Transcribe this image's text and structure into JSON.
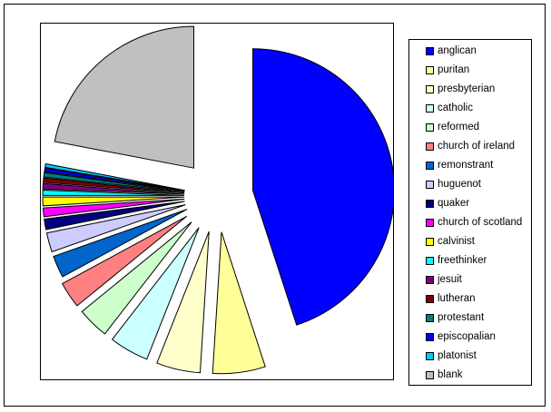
{
  "chart_data": {
    "type": "pie",
    "exploded": true,
    "legend_position": "right",
    "slices": [
      {
        "label": "anglican",
        "value": 45.0,
        "color": "#0000FF"
      },
      {
        "label": "puritan",
        "value": 6.0,
        "color": "#FFFF99"
      },
      {
        "label": "presbyterian",
        "value": 5.0,
        "color": "#FFFFCC"
      },
      {
        "label": "catholic",
        "value": 4.5,
        "color": "#CCFFFF"
      },
      {
        "label": "reformed",
        "value": 3.6,
        "color": "#CCFFCC"
      },
      {
        "label": "church of ireland",
        "value": 3.0,
        "color": "#FF8080"
      },
      {
        "label": "remonstrant",
        "value": 2.5,
        "color": "#0066CC"
      },
      {
        "label": "huguenot",
        "value": 2.2,
        "color": "#CCCCFF"
      },
      {
        "label": "quaker",
        "value": 1.2,
        "color": "#000080"
      },
      {
        "label": "church of scotland",
        "value": 1.0,
        "color": "#FF00FF"
      },
      {
        "label": "calvinist",
        "value": 1.0,
        "color": "#FFFF00"
      },
      {
        "label": "freethinker",
        "value": 0.6,
        "color": "#00FFFF"
      },
      {
        "label": "jesuit",
        "value": 0.6,
        "color": "#800080"
      },
      {
        "label": "lutheran",
        "value": 0.5,
        "color": "#800000"
      },
      {
        "label": "protestant",
        "value": 0.5,
        "color": "#008080"
      },
      {
        "label": "episcopalian",
        "value": 0.4,
        "color": "#0000FF"
      },
      {
        "label": "platonist",
        "value": 0.4,
        "color": "#00CCFF"
      },
      {
        "label": "blank",
        "value": 22.0,
        "color": "#C0C0C0"
      }
    ]
  }
}
